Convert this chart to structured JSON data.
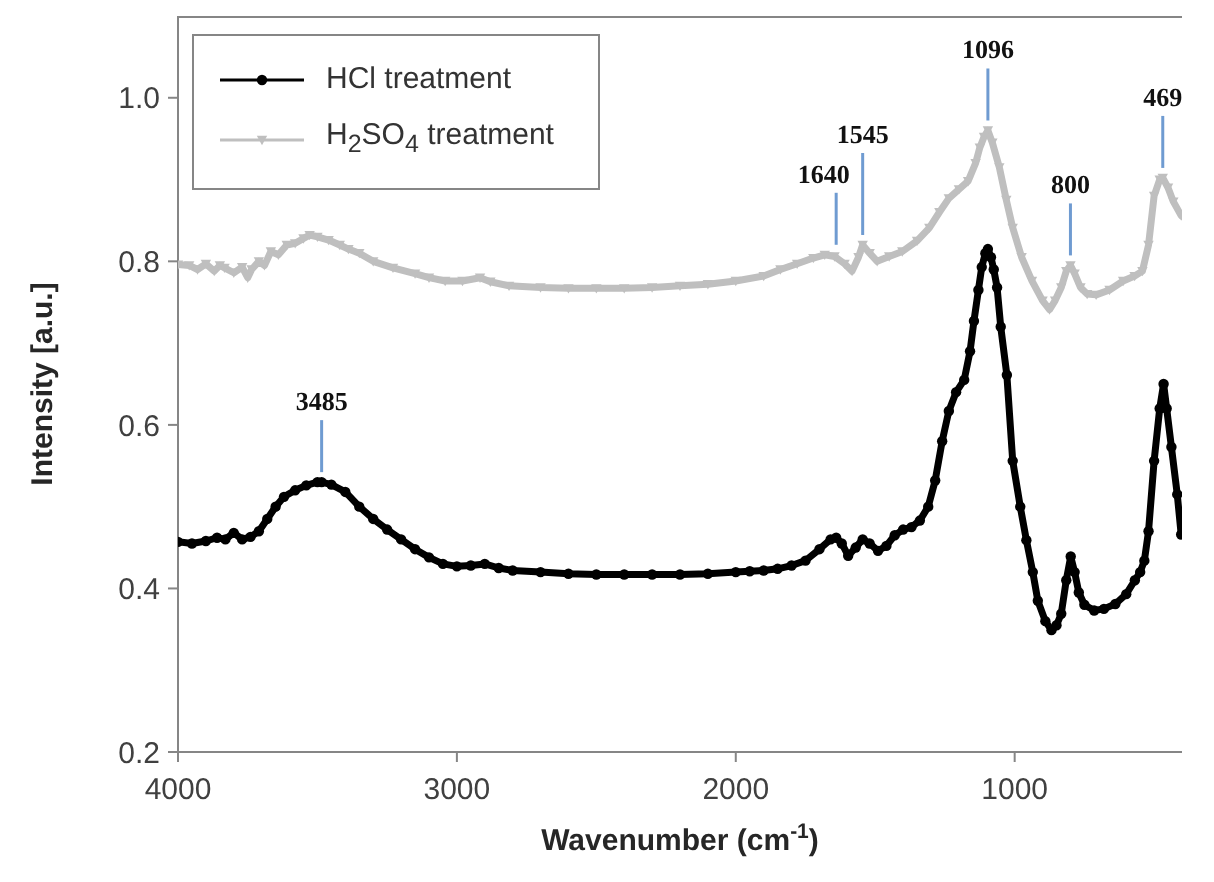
{
  "chart_data": {
    "type": "line",
    "xlabel": "Wavenumber (cm$^{-1}$)",
    "ylabel": "Intensity [a.u.]",
    "xlim": [
      4000,
      400
    ],
    "xticks": [
      4000,
      3000,
      2000,
      1000
    ],
    "ylim": [
      0.2,
      1.1
    ],
    "yticks": [
      0.2,
      0.4,
      0.6,
      0.8,
      {
        "value": 1.0,
        "label": "1.0"
      }
    ],
    "legend": "top left",
    "series": [
      {
        "name": "HCl treatment",
        "color": "#000000",
        "marker": "circle",
        "x": [
          4000,
          3950,
          3900,
          3860,
          3830,
          3800,
          3770,
          3740,
          3710,
          3680,
          3650,
          3620,
          3580,
          3540,
          3500,
          3485,
          3450,
          3400,
          3350,
          3300,
          3250,
          3200,
          3150,
          3100,
          3050,
          3000,
          2950,
          2900,
          2850,
          2800,
          2700,
          2600,
          2500,
          2400,
          2300,
          2200,
          2100,
          2000,
          1950,
          1900,
          1850,
          1800,
          1750,
          1700,
          1660,
          1640,
          1620,
          1597,
          1570,
          1545,
          1520,
          1490,
          1460,
          1430,
          1400,
          1370,
          1340,
          1310,
          1285,
          1260,
          1236,
          1210,
          1181,
          1160,
          1146,
          1130,
          1118,
          1105,
          1096,
          1085,
          1075,
          1063,
          1050,
          1028,
          1007,
          980,
          958,
          935,
          917,
          890,
          868,
          850,
          833,
          815,
          799,
          785,
          770,
          750,
          715,
          680,
          639,
          600,
          569,
          550,
          535,
          520,
          500,
          480,
          466,
          455,
          438,
          417,
          403
        ],
        "values": [
          0.457,
          0.455,
          0.458,
          0.462,
          0.46,
          0.468,
          0.46,
          0.463,
          0.47,
          0.485,
          0.5,
          0.512,
          0.52,
          0.526,
          0.53,
          0.53,
          0.527,
          0.518,
          0.5,
          0.485,
          0.472,
          0.46,
          0.448,
          0.438,
          0.43,
          0.427,
          0.428,
          0.43,
          0.425,
          0.422,
          0.42,
          0.418,
          0.417,
          0.417,
          0.417,
          0.417,
          0.418,
          0.42,
          0.421,
          0.422,
          0.424,
          0.428,
          0.434,
          0.448,
          0.46,
          0.462,
          0.455,
          0.44,
          0.45,
          0.46,
          0.455,
          0.446,
          0.452,
          0.465,
          0.472,
          0.475,
          0.483,
          0.5,
          0.532,
          0.58,
          0.617,
          0.64,
          0.655,
          0.69,
          0.727,
          0.765,
          0.793,
          0.81,
          0.815,
          0.805,
          0.79,
          0.768,
          0.72,
          0.661,
          0.556,
          0.5,
          0.459,
          0.42,
          0.385,
          0.36,
          0.349,
          0.355,
          0.369,
          0.41,
          0.439,
          0.42,
          0.395,
          0.38,
          0.373,
          0.375,
          0.381,
          0.393,
          0.41,
          0.42,
          0.434,
          0.47,
          0.556,
          0.62,
          0.65,
          0.62,
          0.573,
          0.515,
          0.466
        ]
      },
      {
        "name": "H$_{2}$SO$_{4}$ treatment",
        "color": "#bfbfbf",
        "marker": "triangle",
        "x": [
          4000,
          3960,
          3930,
          3900,
          3870,
          3850,
          3833,
          3800,
          3770,
          3750,
          3736,
          3710,
          3690,
          3667,
          3640,
          3610,
          3580,
          3550,
          3528,
          3500,
          3460,
          3420,
          3389,
          3350,
          3300,
          3229,
          3150,
          3100,
          3042,
          2980,
          2917,
          2880,
          2813,
          2700,
          2600,
          2500,
          2400,
          2300,
          2200,
          2100,
          2000,
          1900,
          1840,
          1780,
          1722,
          1681,
          1646,
          1610,
          1583,
          1560,
          1545,
          1520,
          1493,
          1450,
          1403,
          1350,
          1306,
          1270,
          1236,
          1200,
          1167,
          1140,
          1125,
          1110,
          1096,
          1080,
          1055,
          1030,
          1007,
          975,
          938,
          900,
          875,
          855,
          833,
          815,
          800,
          785,
          764,
          740,
          708,
          660,
          611,
          570,
          542,
          520,
          500,
          480,
          469,
          450,
          431,
          403
        ],
        "values": [
          0.796,
          0.795,
          0.79,
          0.797,
          0.788,
          0.795,
          0.792,
          0.786,
          0.793,
          0.78,
          0.79,
          0.8,
          0.795,
          0.812,
          0.808,
          0.82,
          0.822,
          0.828,
          0.832,
          0.83,
          0.826,
          0.82,
          0.815,
          0.81,
          0.8,
          0.792,
          0.785,
          0.78,
          0.776,
          0.776,
          0.78,
          0.775,
          0.77,
          0.768,
          0.767,
          0.767,
          0.767,
          0.768,
          0.77,
          0.772,
          0.776,
          0.782,
          0.79,
          0.797,
          0.804,
          0.808,
          0.806,
          0.797,
          0.788,
          0.805,
          0.82,
          0.81,
          0.8,
          0.806,
          0.812,
          0.825,
          0.841,
          0.86,
          0.877,
          0.888,
          0.898,
          0.92,
          0.939,
          0.952,
          0.96,
          0.945,
          0.915,
          0.875,
          0.841,
          0.805,
          0.776,
          0.752,
          0.741,
          0.752,
          0.768,
          0.788,
          0.795,
          0.785,
          0.768,
          0.76,
          0.759,
          0.765,
          0.776,
          0.782,
          0.788,
          0.82,
          0.88,
          0.9,
          0.902,
          0.89,
          0.873,
          0.856
        ]
      }
    ],
    "annotations": [
      {
        "text": "3485",
        "x": 3485,
        "y": 0.53
      },
      {
        "text": "1640",
        "x": 1640,
        "y": 0.808
      },
      {
        "text": "1545",
        "x": 1545,
        "y": 0.82
      },
      {
        "text": "1096",
        "x": 1096,
        "y": 0.96
      },
      {
        "text": "800",
        "x": 800,
        "y": 0.795
      },
      {
        "text": "469",
        "x": 469,
        "y": 0.902
      }
    ]
  }
}
